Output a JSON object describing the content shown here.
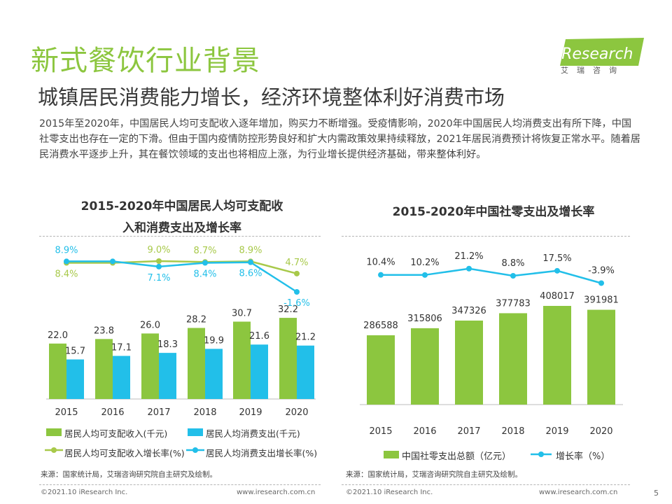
{
  "header": {
    "title": "新式餐饮行业背景",
    "subtitle": "城镇居民消费能力增长，经济环境整体利好消费市场",
    "intro": "2015年至2020年，中国居民人均可支配收入逐年增加，购买力不断增强。受疫情影响，2020年中国居民人均消费支出有所下降，中国社零支出也存在一定的下滑。但由于国内疫情防控形势良好和扩大内需政策效果持续释放，2021年居民消费预计将恢复正常水平。随着居民消费水平逐步上升，其在餐饮领域的支出也将相应上涨，为行业增长提供经济基础，带来整体利好。"
  },
  "logo": {
    "text": "iResearch",
    "sub": "艾瑞咨询"
  },
  "colors": {
    "green": "#8cc63f",
    "cyan": "#22bfe9",
    "line_green": "#a8c94a",
    "text": "#333333"
  },
  "chart_data": [
    {
      "type": "bar",
      "title_line1": "2015-2020年中国居民人均可支配收",
      "title_line2": "入和消费支出及增长率",
      "categories": [
        "2015",
        "2016",
        "2017",
        "2018",
        "2019",
        "2020"
      ],
      "series": [
        {
          "name": "居民人均可支配收入(千元)",
          "kind": "bar",
          "values": [
            22.0,
            23.8,
            26.0,
            28.2,
            30.7,
            32.2
          ],
          "labels": [
            "22.0",
            "23.8",
            "26.0",
            "28.2",
            "30.7",
            "32.2"
          ]
        },
        {
          "name": "居民人均消费支出(千元)",
          "kind": "bar",
          "values": [
            15.7,
            17.1,
            18.3,
            19.9,
            21.6,
            21.2
          ],
          "labels": [
            "15.7",
            "17.1",
            "18.3",
            "19.9",
            "21.6",
            "21.2"
          ]
        },
        {
          "name": "居民人均可支配收入增长率(%)",
          "kind": "line",
          "values": [
            8.4,
            8.4,
            9.0,
            8.7,
            8.9,
            4.7
          ],
          "labels": [
            "8.4%",
            "",
            "9.0%",
            "8.7%",
            "8.9%",
            "4.7%"
          ]
        },
        {
          "name": "居民人均消费支出增长率(%)",
          "kind": "line",
          "values": [
            8.9,
            8.9,
            7.1,
            8.4,
            8.6,
            -1.6
          ],
          "labels": [
            "8.9%",
            "",
            "7.1%",
            "8.4%",
            "8.6%",
            "-1.6%"
          ]
        }
      ],
      "ylim": [
        0,
        36
      ],
      "source": "来源：国家统计局，艾瑞咨询研究院自主研究及绘制。"
    },
    {
      "type": "bar",
      "title": "2015-2020年中国社零支出及增长率",
      "categories": [
        "2015",
        "2016",
        "2017",
        "2018",
        "2019",
        "2020"
      ],
      "series": [
        {
          "name": "中国社零支出总额（亿元）",
          "kind": "bar",
          "values": [
            286588,
            315806,
            347326,
            377783,
            408017,
            391981
          ],
          "labels": [
            "286588",
            "315806",
            "347326",
            "377783",
            "408017",
            "391981"
          ]
        },
        {
          "name": "增长率（%）",
          "kind": "line",
          "values": [
            10.4,
            10.2,
            21.2,
            8.8,
            17.5,
            -3.9
          ],
          "labels": [
            "10.4%",
            "10.2%",
            "21.2%",
            "8.8%",
            "17.5%",
            "-3.9%"
          ]
        }
      ],
      "ylim": [
        0,
        420000
      ],
      "source": "来源：国家统计局，艾瑞咨询研究院自主研究及绘制。"
    }
  ],
  "footer": {
    "left": "©2021.10 iResearch Inc.",
    "left_url": "www.iresearch.com.cn",
    "right": "©2021.10 iResearch Inc.",
    "right_url": "www.iresearch.com.cn",
    "page": "5"
  }
}
